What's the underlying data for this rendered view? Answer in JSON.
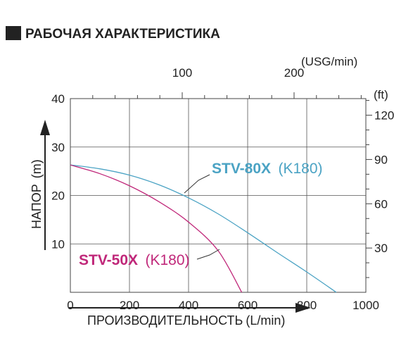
{
  "chart_data": {
    "type": "line",
    "title": "РАБОЧАЯ ХАРАКТЕРИСТИКА",
    "xlabel": "ПРОИЗВОДИТЕЛЬНОСТЬ",
    "xunit": "(L/min)",
    "ylabel": "НАПОР",
    "yunit": "(m)",
    "x2unit": "(USG/min)",
    "y2unit": "(ft)",
    "xlim": [
      0,
      1000
    ],
    "ylim": [
      0,
      40
    ],
    "x_ticks": [
      "0",
      "200",
      "400",
      "600",
      "800",
      "1000"
    ],
    "y_ticks": [
      "10",
      "20",
      "30",
      "40"
    ],
    "x2_ticks": [
      "100",
      "200"
    ],
    "y2_ticks": [
      "30",
      "60",
      "90",
      "120"
    ],
    "grid": true,
    "series": [
      {
        "name": "STV-80X",
        "model": "(K180)",
        "color": "#4ba3c4",
        "points": [
          [
            0,
            26.3
          ],
          [
            100,
            25.5
          ],
          [
            200,
            24.2
          ],
          [
            300,
            22.2
          ],
          [
            400,
            19.5
          ],
          [
            500,
            16.2
          ],
          [
            600,
            12.3
          ],
          [
            700,
            8.2
          ],
          [
            800,
            4.2
          ],
          [
            900,
            0
          ]
        ]
      },
      {
        "name": "STV-50X",
        "model": "(K180)",
        "color": "#c0287a",
        "points": [
          [
            0,
            26.3
          ],
          [
            100,
            24.5
          ],
          [
            200,
            22.0
          ],
          [
            300,
            18.7
          ],
          [
            400,
            14.5
          ],
          [
            500,
            8.6
          ],
          [
            580,
            0
          ]
        ]
      }
    ]
  }
}
